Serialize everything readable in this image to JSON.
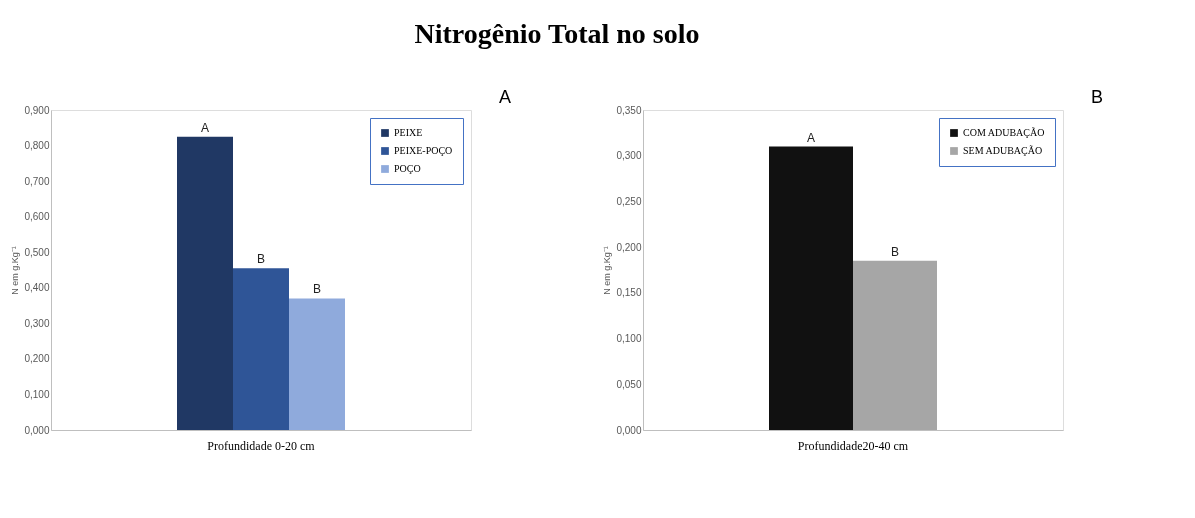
{
  "chart_data": [
    {
      "type": "bar",
      "title": "Nitrogênio Total no solo",
      "ylabel": "N em g.Kg⁻¹",
      "categories": [
        "Profundidade  0-20 cm"
      ],
      "series": [
        {
          "name": "PEIXE",
          "color": "#203864",
          "values": [
            0.825
          ],
          "value_labels": [
            "A"
          ]
        },
        {
          "name": "PEIXE-POÇO",
          "color": "#2f5597",
          "values": [
            0.455
          ],
          "value_labels": [
            "B"
          ]
        },
        {
          "name": "POÇO",
          "color": "#8faadc",
          "values": [
            0.37
          ],
          "value_labels": [
            "B"
          ]
        }
      ],
      "ylim": [
        0,
        0.9
      ],
      "yticks": [
        {
          "value": 0,
          "label": "0,000"
        },
        {
          "value": 0.1,
          "label": "0,100"
        },
        {
          "value": 0.2,
          "label": "0,200"
        },
        {
          "value": 0.3,
          "label": "0,300"
        },
        {
          "value": 0.4,
          "label": "0,400"
        },
        {
          "value": 0.5,
          "label": "0,500"
        },
        {
          "value": 0.6,
          "label": "0,600"
        },
        {
          "value": 0.7,
          "label": "0,700"
        },
        {
          "value": 0.8,
          "label": "0,800"
        },
        {
          "value": 0.9,
          "label": "0,900"
        }
      ],
      "grid": false,
      "legend": "top right",
      "annotations": [
        "A"
      ]
    },
    {
      "type": "bar",
      "ylabel": "N em g.Kg⁻¹",
      "categories": [
        "Profundidade20-40 cm"
      ],
      "series": [
        {
          "name": "COM ADUBAÇÃO",
          "color": "#111111",
          "values": [
            0.31
          ],
          "value_labels": [
            "A"
          ]
        },
        {
          "name": "SEM ADUBAÇÃO",
          "color": "#a6a6a6",
          "values": [
            0.185
          ],
          "value_labels": [
            "B"
          ]
        }
      ],
      "ylim": [
        0,
        0.35
      ],
      "yticks": [
        {
          "value": 0,
          "label": "0,000"
        },
        {
          "value": 0.05,
          "label": "0,050"
        },
        {
          "value": 0.1,
          "label": "0,100"
        },
        {
          "value": 0.15,
          "label": "0,150"
        },
        {
          "value": 0.2,
          "label": "0,200"
        },
        {
          "value": 0.25,
          "label": "0,250"
        },
        {
          "value": 0.3,
          "label": "0,300"
        },
        {
          "value": 0.35,
          "label": "0,350"
        }
      ],
      "grid": false,
      "legend": "top right",
      "annotations": [
        "B"
      ]
    }
  ]
}
